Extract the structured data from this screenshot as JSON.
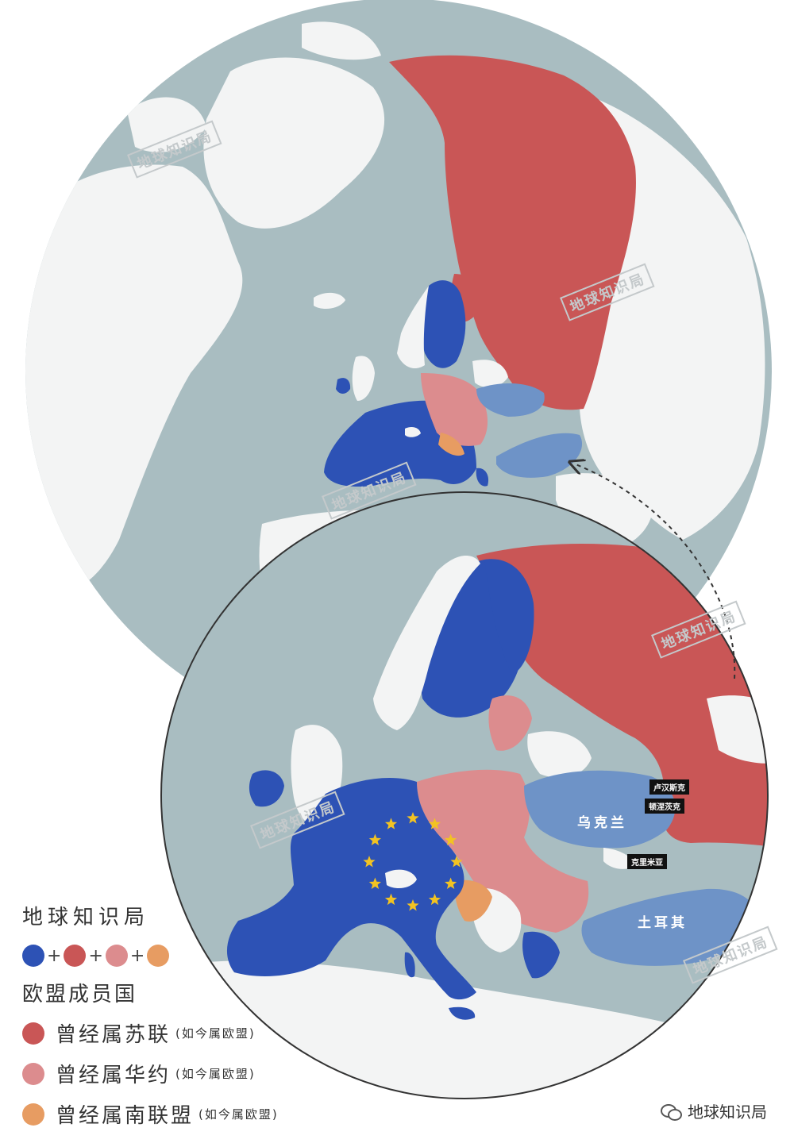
{
  "colors": {
    "ocean": "#a9bdc1",
    "land_other": "#f3f4f4",
    "eu": "#2d52b5",
    "former_ussr": "#c95656",
    "former_warsaw": "#dc8c8e",
    "former_yugoslavia": "#e79c62",
    "non_eu_europe": "#6e93c7"
  },
  "watermark": "地球知识局",
  "labels": {
    "lugansk": "卢汉斯克",
    "donetsk": "顿涅茨克",
    "ukraine": "乌克兰",
    "crimea": "克里米亚",
    "turkey": "土耳其"
  },
  "legend": {
    "title": "地球知识局",
    "plus": "+",
    "eu_members": "欧盟成员国",
    "items": [
      {
        "label": "曾经属苏联",
        "note": "(如今属欧盟)",
        "color": "#c95656"
      },
      {
        "label": "曾经属华约",
        "note": "(如今属欧盟)",
        "color": "#dc8c8e"
      },
      {
        "label": "曾经属南联盟",
        "note": "(如今属欧盟)",
        "color": "#e79c62"
      }
    ]
  },
  "footer": {
    "brand": "地球知识局",
    "icon": "wechat-icon"
  }
}
